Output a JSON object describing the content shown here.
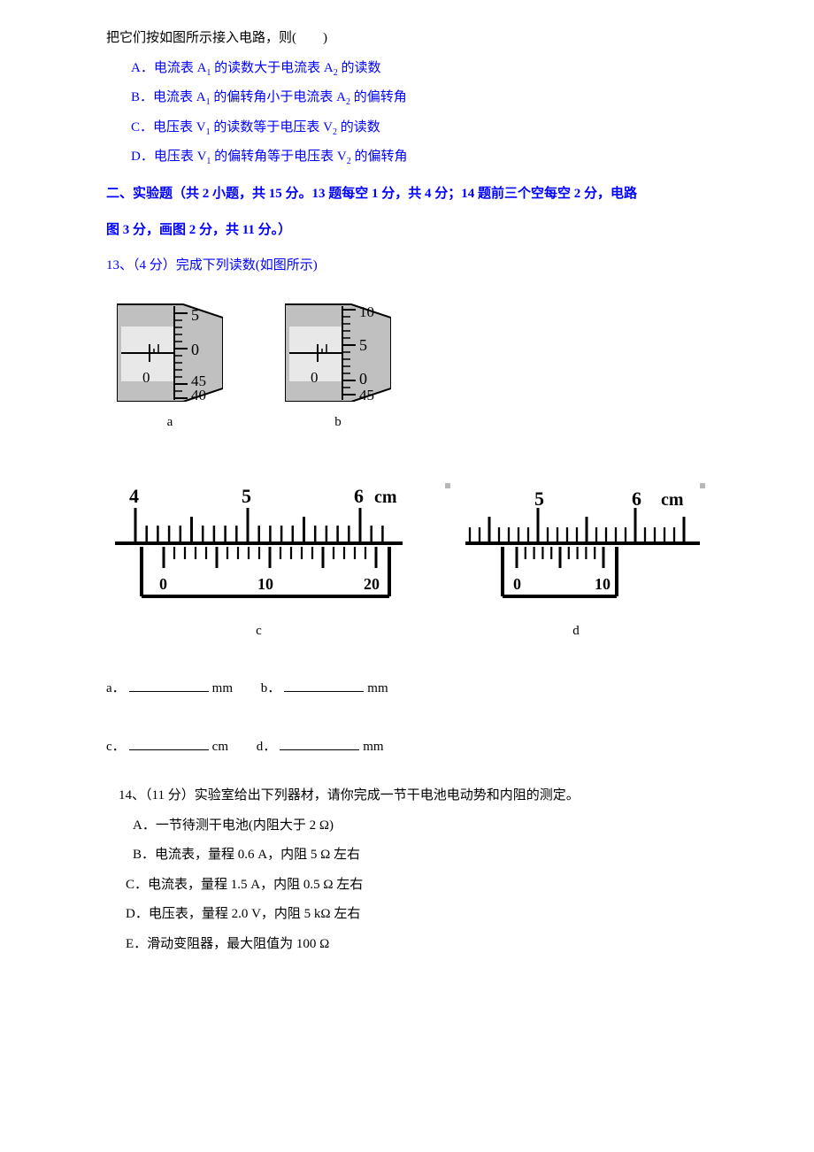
{
  "intro_line": "把它们按如图所示接入电路，则(　　)",
  "opts": {
    "A_pre": "A．电流表 A",
    "A_mid": " 的读数大于电流表 A",
    "A_post": " 的读数",
    "B_pre": "B．电流表 A",
    "B_mid": " 的偏转角小于电流表 A",
    "B_post": " 的偏转角",
    "C_pre": "C．电压表 V",
    "C_mid": " 的读数等于电压表 V",
    "C_post": " 的读数",
    "D_pre": "D．电压表 V",
    "D_mid": " 的偏转角等于电压表 V",
    "D_post": " 的偏转角",
    "sub1": "1",
    "sub2": "2"
  },
  "section2_l1": "二、实验题（共 2 小题，共 15 分。13 题每空 1 分，共 4 分；14 题前三个空每空 2 分，电路",
  "section2_l2": "图 3 分，画图 2 分，共 11 分。）",
  "q13_stem": "13、（4 分）完成下列读数(如图所示)",
  "micrometer_a": {
    "label": "a",
    "barrel_ticks": [
      "5",
      "0",
      "45",
      "40"
    ],
    "main_zero": "0",
    "bg": "#c0c0c0",
    "inner_bg": "#f5f5f5"
  },
  "micrometer_b": {
    "label": "b",
    "barrel_ticks": [
      "10",
      "5",
      "0",
      "45"
    ],
    "main_zero": "0",
    "bg": "#c0c0c0",
    "inner_bg": "#f5f5f5"
  },
  "vernier_c": {
    "label": "c",
    "main_labels": [
      "4",
      "5",
      "6"
    ],
    "unit": "cm",
    "vern_labels": [
      "0",
      "10",
      "20"
    ],
    "main_ticks": 21,
    "vern_ticks": 21
  },
  "vernier_d": {
    "label": "d",
    "main_labels": [
      "5",
      "6"
    ],
    "unit": "cm",
    "vern_labels": [
      "0",
      "10"
    ],
    "main_ticks": 21,
    "vern_ticks": 11
  },
  "ans": {
    "a_label": "a．",
    "a_unit": "mm",
    "b_label": "b．",
    "b_unit": "mm",
    "c_label": "c．",
    "c_unit": "cm",
    "d_label": "d．",
    "d_unit": "mm"
  },
  "q14_stem": "14、（11 分）实验室给出下列器材，请你完成一节干电池电动势和内阻的测定。",
  "q14": {
    "A": "A．一节待测干电池(内阻大于 2 Ω)",
    "B": "B．电流表，量程 0.6 A，内阻 5 Ω 左右",
    "C": "C．电流表，量程 1.5 A，内阻 0.5 Ω 左右",
    "D": "D．电压表，量程 2.0 V，内阻 5 kΩ 左右",
    "E": "E．滑动变阻器，最大阻值为 100 Ω"
  },
  "colors": {
    "blue": "#0000ff",
    "black": "#000000"
  }
}
